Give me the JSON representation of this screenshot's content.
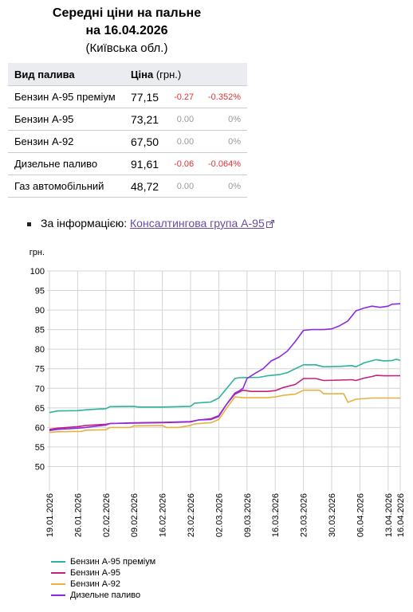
{
  "header": {
    "title_line1": "Середні ціни на пальне",
    "title_line2": "на 16.04.2026",
    "subtitle": "(Київська обл.)"
  },
  "table": {
    "col_fuel": "Вид палива",
    "col_price": "Ціна",
    "col_unit": "(грн.)",
    "rows": [
      {
        "name": "Бензин А-95 преміум",
        "price": "77,15",
        "change": "-0.27",
        "change_pct": "-0.352%",
        "negative": true
      },
      {
        "name": "Бензин А-95",
        "price": "73,21",
        "change": "0.00",
        "change_pct": "0%",
        "negative": false
      },
      {
        "name": "Бензин А-92",
        "price": "67,50",
        "change": "0.00",
        "change_pct": "0%",
        "negative": false
      },
      {
        "name": "Дизельне паливо",
        "price": "91,61",
        "change": "-0.06",
        "change_pct": "-0.064%",
        "negative": true
      },
      {
        "name": "Газ автомобільний",
        "price": "48,72",
        "change": "0.00",
        "change_pct": "0%",
        "negative": false
      }
    ]
  },
  "source": {
    "prefix": "За інформацією:",
    "link_text": "Консалтингова група А-95",
    "link_icon": "external-link-icon"
  },
  "chart_data": {
    "type": "line",
    "ylabel": "грн.",
    "ylim": [
      45,
      100
    ],
    "yticks": [
      50,
      55,
      60,
      65,
      70,
      75,
      80,
      85,
      90,
      95,
      100
    ],
    "grid": true,
    "x_start": "2026-01-19",
    "x_end": "2026-04-16",
    "xticks": [
      "19.01.2026",
      "26.01.2026",
      "02.02.2026",
      "09.02.2026",
      "16.02.2026",
      "23.02.2026",
      "02.03.2026",
      "09.03.2026",
      "16.03.2026",
      "23.03.2026",
      "30.03.2026",
      "06.04.2026",
      "13.04.2026",
      "16.04.2026"
    ],
    "legend_position": "bottom-left",
    "series": [
      {
        "name": "Бензин А-95 преміум",
        "color": "#2bb39b",
        "points": [
          [
            "2026-01-19",
            63.8
          ],
          [
            "2026-01-21",
            64.2
          ],
          [
            "2026-01-26",
            64.3
          ],
          [
            "2026-01-28",
            64.5
          ],
          [
            "2026-02-02",
            64.8
          ],
          [
            "2026-02-03",
            65.3
          ],
          [
            "2026-02-09",
            65.4
          ],
          [
            "2026-02-10",
            65.2
          ],
          [
            "2026-02-16",
            65.2
          ],
          [
            "2026-02-23",
            65.4
          ],
          [
            "2026-02-24",
            66.2
          ],
          [
            "2026-02-28",
            66.5
          ],
          [
            "2026-03-02",
            67.5
          ],
          [
            "2026-03-04",
            70.0
          ],
          [
            "2026-03-06",
            72.5
          ],
          [
            "2026-03-07",
            72.7
          ],
          [
            "2026-03-12",
            72.8
          ],
          [
            "2026-03-14",
            73.2
          ],
          [
            "2026-03-17",
            73.5
          ],
          [
            "2026-03-19",
            74.0
          ],
          [
            "2026-03-21",
            75.0
          ],
          [
            "2026-03-23",
            76.0
          ],
          [
            "2026-03-26",
            76.0
          ],
          [
            "2026-03-28",
            75.5
          ],
          [
            "2026-04-01",
            75.6
          ],
          [
            "2026-04-04",
            75.8
          ],
          [
            "2026-04-05",
            75.5
          ],
          [
            "2026-04-07",
            76.5
          ],
          [
            "2026-04-10",
            77.3
          ],
          [
            "2026-04-12",
            77.0
          ],
          [
            "2026-04-14",
            77.1
          ],
          [
            "2026-04-15",
            77.4
          ],
          [
            "2026-04-16",
            77.15
          ]
        ]
      },
      {
        "name": "Бензин А-95",
        "color": "#c2217e",
        "points": [
          [
            "2026-01-19",
            59.5
          ],
          [
            "2026-01-21",
            59.8
          ],
          [
            "2026-01-26",
            60.2
          ],
          [
            "2026-01-28",
            60.5
          ],
          [
            "2026-02-02",
            60.8
          ],
          [
            "2026-02-03",
            61.0
          ],
          [
            "2026-02-09",
            61.1
          ],
          [
            "2026-02-16",
            61.2
          ],
          [
            "2026-02-23",
            61.4
          ],
          [
            "2026-02-25",
            61.9
          ],
          [
            "2026-02-28",
            62.2
          ],
          [
            "2026-03-02",
            63.0
          ],
          [
            "2026-03-04",
            66.0
          ],
          [
            "2026-03-06",
            68.5
          ],
          [
            "2026-03-08",
            69.5
          ],
          [
            "2026-03-10",
            69.2
          ],
          [
            "2026-03-14",
            69.2
          ],
          [
            "2026-03-16",
            69.4
          ],
          [
            "2026-03-18",
            70.2
          ],
          [
            "2026-03-21",
            71.0
          ],
          [
            "2026-03-23",
            72.5
          ],
          [
            "2026-03-26",
            72.5
          ],
          [
            "2026-03-28",
            72.0
          ],
          [
            "2026-04-01",
            72.1
          ],
          [
            "2026-04-04",
            72.2
          ],
          [
            "2026-04-05",
            72.0
          ],
          [
            "2026-04-07",
            72.6
          ],
          [
            "2026-04-09",
            73.0
          ],
          [
            "2026-04-10",
            73.3
          ],
          [
            "2026-04-12",
            73.2
          ],
          [
            "2026-04-16",
            73.21
          ]
        ]
      },
      {
        "name": "Бензин А-92",
        "color": "#e8b13f",
        "points": [
          [
            "2026-01-19",
            58.7
          ],
          [
            "2026-01-21",
            58.9
          ],
          [
            "2026-01-27",
            59.0
          ],
          [
            "2026-01-28",
            59.3
          ],
          [
            "2026-02-02",
            59.4
          ],
          [
            "2026-02-03",
            60.0
          ],
          [
            "2026-02-08",
            60.0
          ],
          [
            "2026-02-09",
            60.4
          ],
          [
            "2026-02-16",
            60.5
          ],
          [
            "2026-02-17",
            60.0
          ],
          [
            "2026-02-20",
            60.0
          ],
          [
            "2026-02-23",
            60.5
          ],
          [
            "2026-02-24",
            60.9
          ],
          [
            "2026-02-28",
            61.2
          ],
          [
            "2026-03-02",
            62.0
          ],
          [
            "2026-03-04",
            65.0
          ],
          [
            "2026-03-06",
            67.8
          ],
          [
            "2026-03-08",
            67.6
          ],
          [
            "2026-03-14",
            67.6
          ],
          [
            "2026-03-16",
            67.8
          ],
          [
            "2026-03-18",
            68.2
          ],
          [
            "2026-03-21",
            68.5
          ],
          [
            "2026-03-23",
            69.5
          ],
          [
            "2026-03-27",
            69.5
          ],
          [
            "2026-03-28",
            68.6
          ],
          [
            "2026-03-31",
            68.6
          ],
          [
            "2026-04-02",
            68.6
          ],
          [
            "2026-04-03",
            66.4
          ],
          [
            "2026-04-05",
            67.2
          ],
          [
            "2026-04-09",
            67.5
          ],
          [
            "2026-04-16",
            67.5
          ]
        ]
      },
      {
        "name": "Дизельне паливо",
        "color": "#8a2be2",
        "points": [
          [
            "2026-01-19",
            59.2
          ],
          [
            "2026-01-21",
            59.5
          ],
          [
            "2026-01-26",
            59.8
          ],
          [
            "2026-01-28",
            60.0
          ],
          [
            "2026-02-02",
            60.6
          ],
          [
            "2026-02-03",
            61.0
          ],
          [
            "2026-02-09",
            61.2
          ],
          [
            "2026-02-16",
            61.3
          ],
          [
            "2026-02-23",
            61.5
          ],
          [
            "2026-02-25",
            61.9
          ],
          [
            "2026-02-28",
            62.0
          ],
          [
            "2026-03-02",
            62.8
          ],
          [
            "2026-03-04",
            66.0
          ],
          [
            "2026-03-06",
            68.8
          ],
          [
            "2026-03-07",
            69.3
          ],
          [
            "2026-03-08",
            70.0
          ],
          [
            "2026-03-09",
            72.5
          ],
          [
            "2026-03-11",
            73.8
          ],
          [
            "2026-03-13",
            75.0
          ],
          [
            "2026-03-15",
            77.0
          ],
          [
            "2026-03-17",
            78.0
          ],
          [
            "2026-03-19",
            79.5
          ],
          [
            "2026-03-21",
            82.0
          ],
          [
            "2026-03-23",
            84.8
          ],
          [
            "2026-03-25",
            85.0
          ],
          [
            "2026-03-28",
            85.0
          ],
          [
            "2026-03-30",
            85.2
          ],
          [
            "2026-04-01",
            86.0
          ],
          [
            "2026-04-03",
            87.2
          ],
          [
            "2026-04-05",
            89.8
          ],
          [
            "2026-04-07",
            90.5
          ],
          [
            "2026-04-09",
            91.0
          ],
          [
            "2026-04-11",
            90.7
          ],
          [
            "2026-04-13",
            91.0
          ],
          [
            "2026-04-14",
            91.5
          ],
          [
            "2026-04-16",
            91.61
          ]
        ]
      }
    ]
  }
}
